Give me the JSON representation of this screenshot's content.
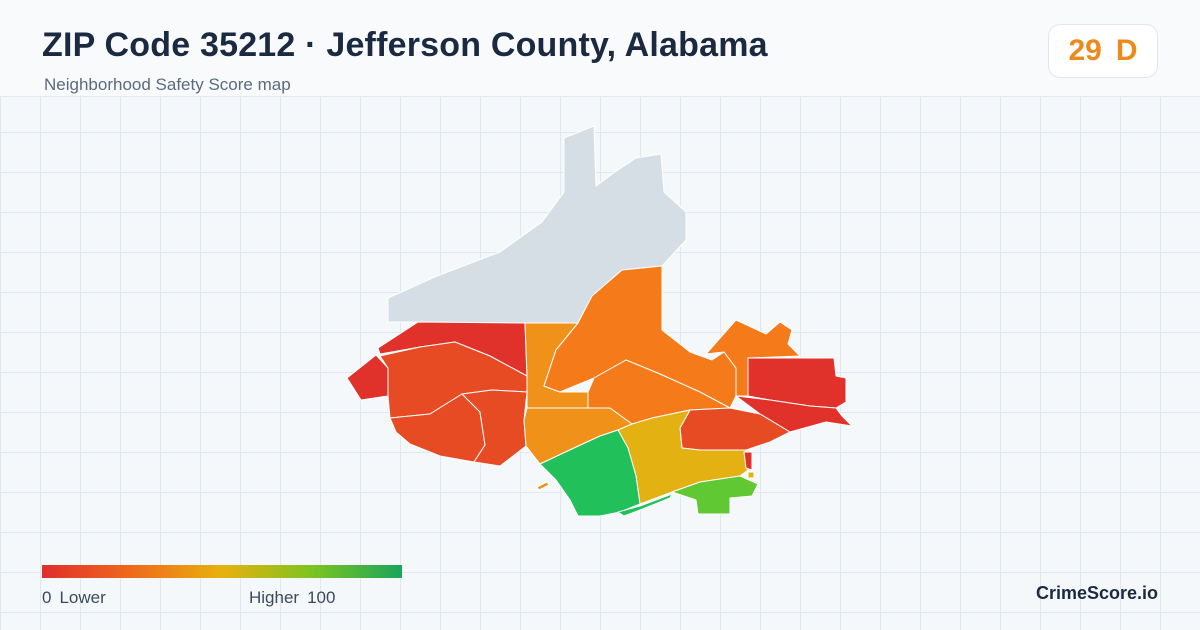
{
  "header": {
    "title": "ZIP Code 35212 · Jefferson County, Alabama",
    "subtitle": "Neighborhood Safety Score map"
  },
  "score": {
    "value": "29",
    "grade": "D",
    "color": "#ee8a1c"
  },
  "legend": {
    "low_value": "0",
    "low_label": "Lower",
    "high_label": "Higher",
    "high_value": "100",
    "colors": [
      "#e02d2d",
      "#ef6a1c",
      "#e8b10f",
      "#7cc41f",
      "#1aa55a"
    ]
  },
  "brand": "CrimeScore.io",
  "map_colors": {
    "no_data": "#d6dee5",
    "red": "#e0322a",
    "red_orange": "#e64b24",
    "orange": "#f57a1a",
    "amber": "#f0921a",
    "yellow": "#e4b112",
    "green": "#22c05a",
    "light_green": "#60c832"
  }
}
